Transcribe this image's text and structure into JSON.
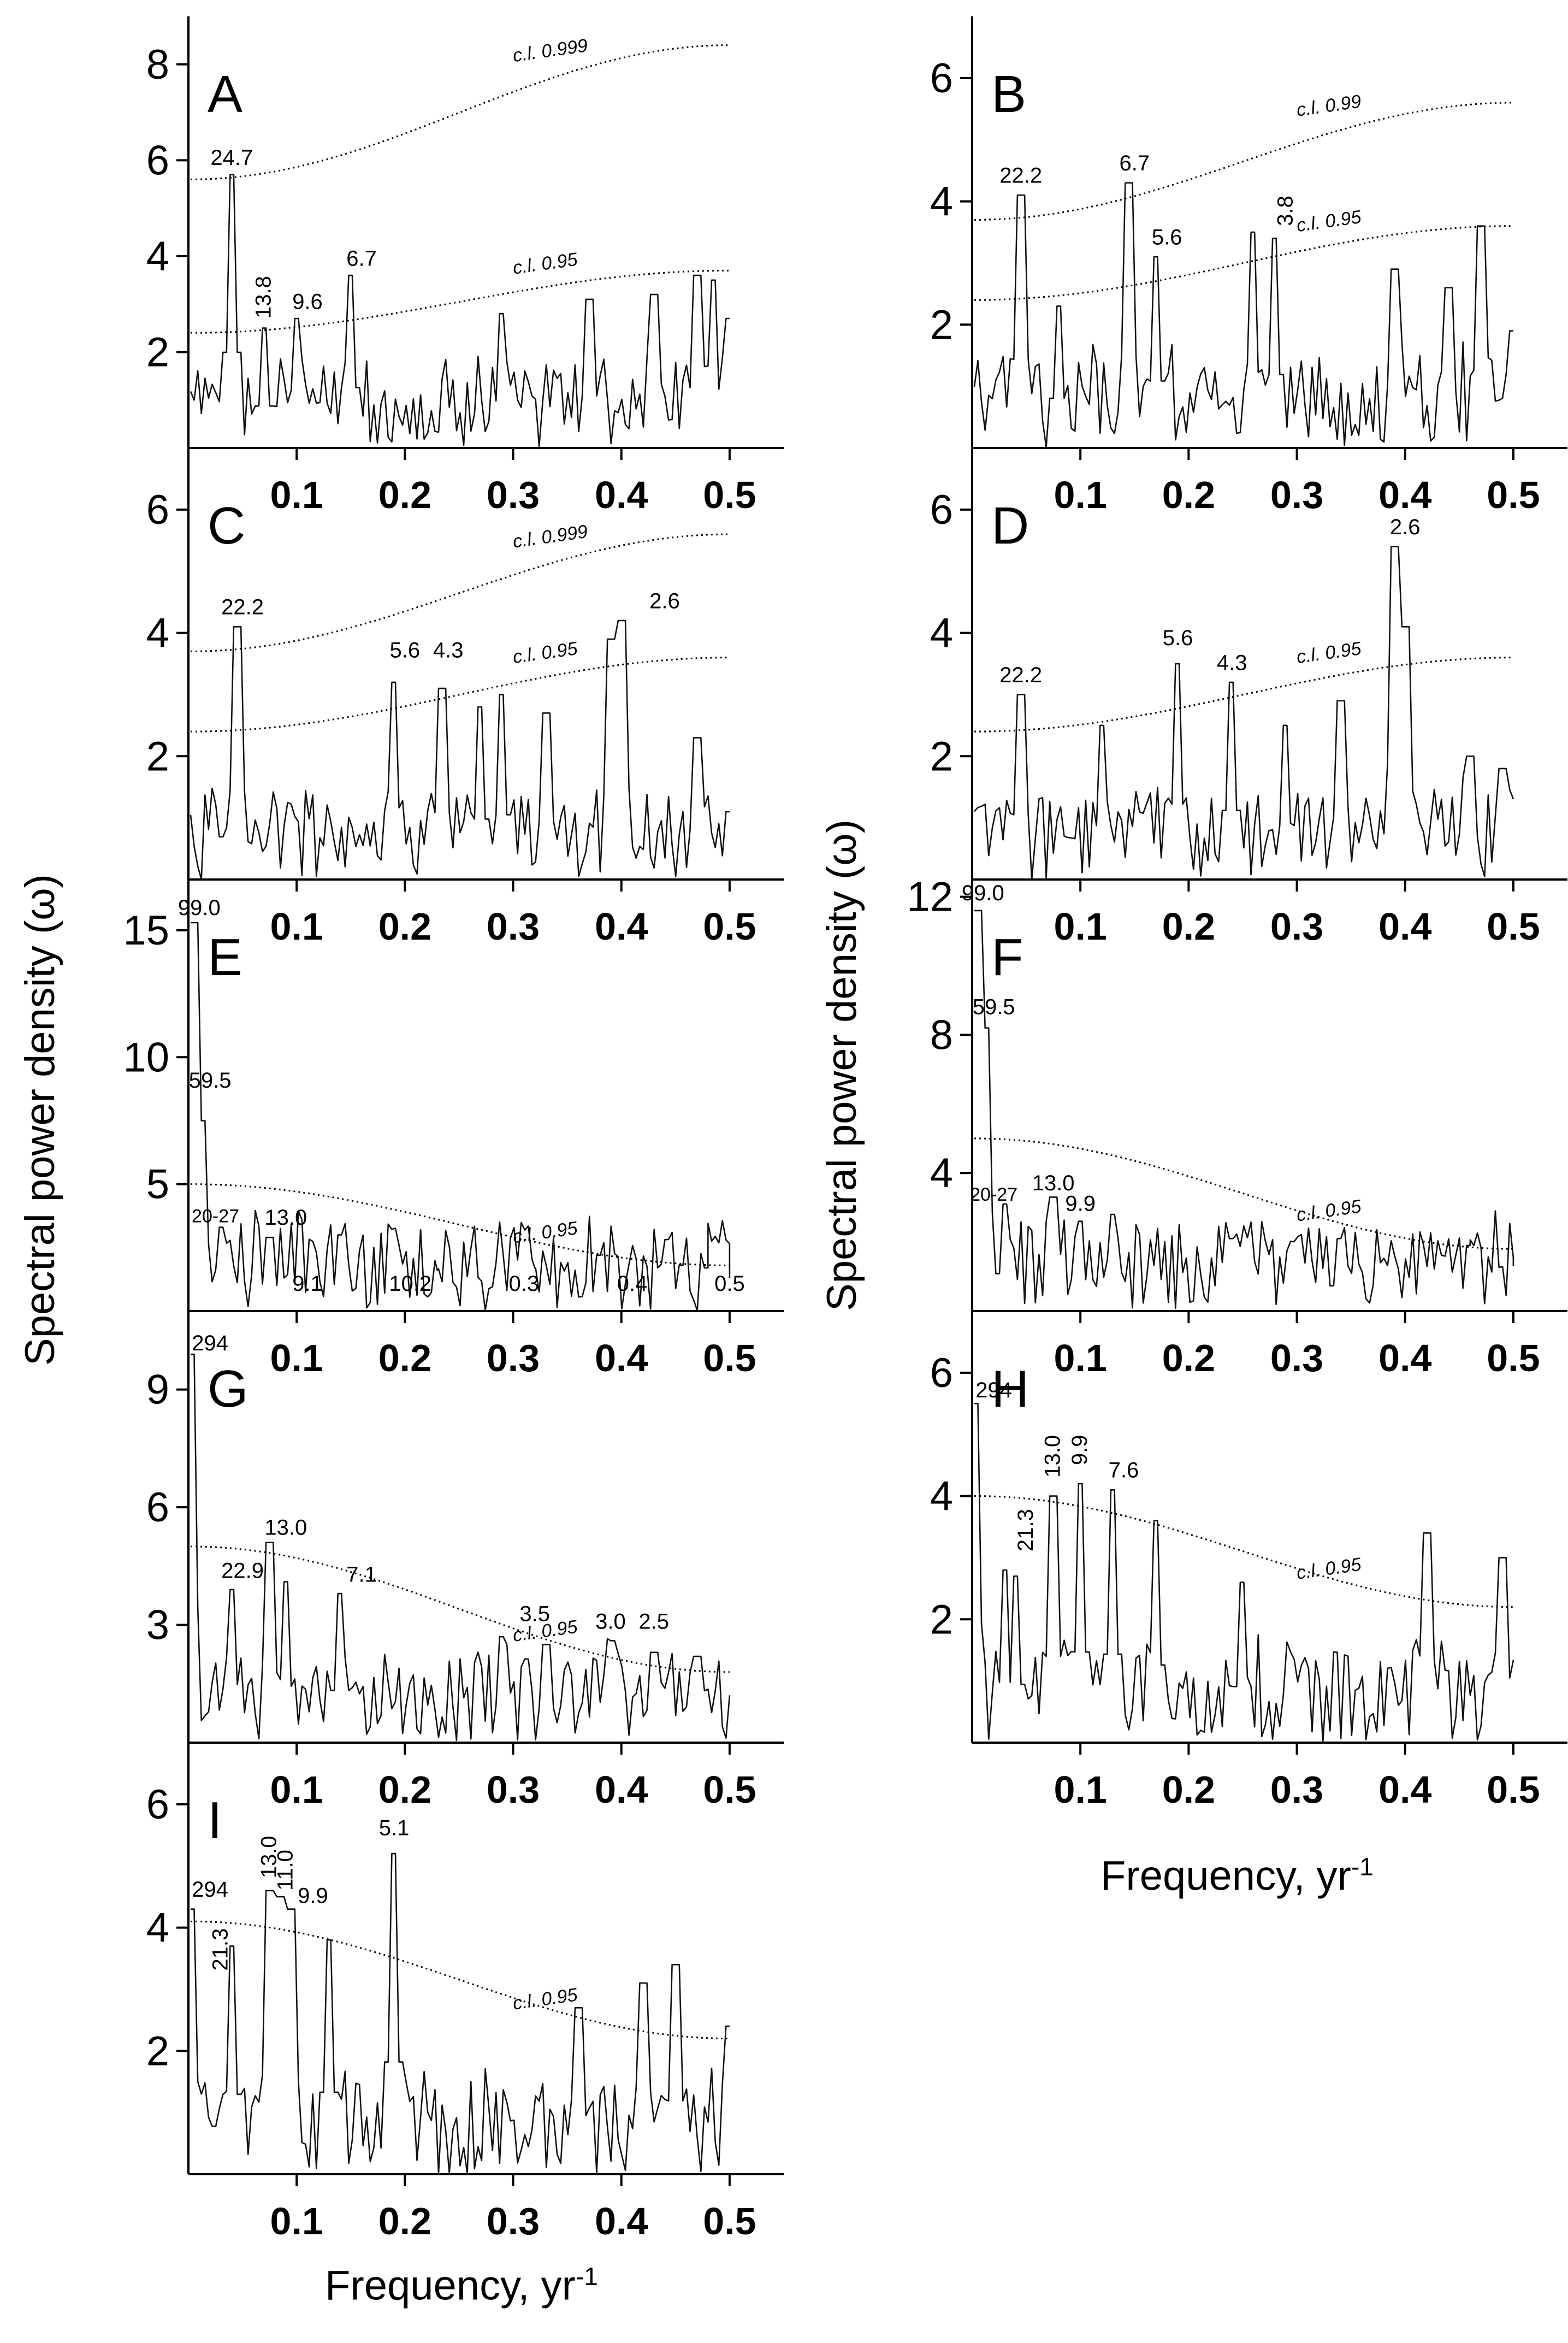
{
  "figure": {
    "ylabel_left": "Spectral power density (ω)",
    "ylabel_right": "Spectral power density (ω)",
    "xlabel_right_text": "Frequency, yr",
    "xlabel_right_exp": "-1",
    "xlabel_bottom_text": "Frequency, yr",
    "xlabel_bottom_exp": "-1"
  },
  "chart_data": [
    {
      "panel": "A",
      "type": "line",
      "title": "A",
      "xlabel": "",
      "ylabel": "",
      "xlim": [
        0,
        0.55
      ],
      "ylim": [
        0,
        9
      ],
      "xticks": [
        0.1,
        0.2,
        0.3,
        0.4,
        0.5
      ],
      "yticks": [
        2,
        4,
        6,
        8
      ],
      "xtick_labels": [
        "0.1",
        "0.2",
        "0.3",
        "0.4",
        "0.5"
      ],
      "ytick_labels": [
        "2",
        "4",
        "6",
        "8"
      ],
      "peaks": [
        [
          0.04,
          5.7
        ],
        [
          0.07,
          2.5
        ],
        [
          0.1,
          2.7
        ],
        [
          0.15,
          3.6
        ],
        [
          0.29,
          2.8
        ],
        [
          0.37,
          3.1
        ],
        [
          0.43,
          3.2
        ],
        [
          0.47,
          3.6
        ],
        [
          0.485,
          3.5
        ],
        [
          0.5,
          2.7
        ]
      ],
      "confidence_levels": [
        {
          "label": "c.l. 0.999",
          "start": 5.6,
          "end": 8.4
        },
        {
          "label": "c.l. 0.95",
          "start": 2.4,
          "end": 3.7
        }
      ],
      "annotations": [
        {
          "text": "24.7",
          "x": 0.04,
          "y": 5.9
        },
        {
          "text": "13.8",
          "x": 0.07,
          "y": 2.7,
          "rotated": true
        },
        {
          "text": "9.6",
          "x": 0.11,
          "y": 2.9
        },
        {
          "text": "6.7",
          "x": 0.16,
          "y": 3.8
        }
      ]
    },
    {
      "panel": "B",
      "type": "line",
      "title": "B",
      "xlabel": "",
      "ylabel": "",
      "xlim": [
        0,
        0.55
      ],
      "ylim": [
        0,
        7
      ],
      "xticks": [
        0.1,
        0.2,
        0.3,
        0.4,
        0.5
      ],
      "yticks": [
        2,
        4,
        6
      ],
      "xtick_labels": [
        "0.1",
        "0.2",
        "0.3",
        "0.4",
        "0.5"
      ],
      "ytick_labels": [
        "2",
        "4",
        "6"
      ],
      "peaks": [
        [
          0.045,
          4.1
        ],
        [
          0.08,
          2.3
        ],
        [
          0.145,
          4.3
        ],
        [
          0.17,
          3.1
        ],
        [
          0.26,
          3.5
        ],
        [
          0.28,
          3.4
        ],
        [
          0.39,
          2.9
        ],
        [
          0.44,
          2.6
        ],
        [
          0.47,
          3.6
        ],
        [
          0.5,
          1.9
        ]
      ],
      "confidence_levels": [
        {
          "label": "c.l. 0.99",
          "start": 3.7,
          "end": 5.6
        },
        {
          "label": "c.l. 0.95",
          "start": 2.4,
          "end": 3.6
        }
      ],
      "annotations": [
        {
          "text": "22.2",
          "x": 0.045,
          "y": 4.3
        },
        {
          "text": "6.7",
          "x": 0.15,
          "y": 4.5
        },
        {
          "text": "5.6",
          "x": 0.18,
          "y": 3.3
        },
        {
          "text": "3.8",
          "x": 0.29,
          "y": 3.6,
          "rotated": true
        }
      ]
    },
    {
      "panel": "C",
      "type": "line",
      "title": "C",
      "xlabel": "",
      "ylabel": "",
      "xlim": [
        0,
        0.55
      ],
      "ylim": [
        0,
        7
      ],
      "xticks": [
        0.1,
        0.2,
        0.3,
        0.4,
        0.5
      ],
      "yticks": [
        2,
        4,
        6
      ],
      "xtick_labels": [
        "0.1",
        "0.2",
        "0.3",
        "0.4",
        "0.5"
      ],
      "ytick_labels": [
        "2",
        "4",
        "6"
      ],
      "peaks": [
        [
          0.045,
          4.1
        ],
        [
          0.19,
          3.2
        ],
        [
          0.235,
          3.1
        ],
        [
          0.27,
          2.8
        ],
        [
          0.29,
          3.0
        ],
        [
          0.33,
          2.7
        ],
        [
          0.39,
          3.9
        ],
        [
          0.4,
          4.2
        ],
        [
          0.47,
          2.3
        ],
        [
          0.5,
          1.1
        ]
      ],
      "confidence_levels": [
        {
          "label": "c.l. 0.999",
          "start": 3.7,
          "end": 5.6
        },
        {
          "label": "c.l. 0.95",
          "start": 2.4,
          "end": 3.6
        }
      ],
      "annotations": [
        {
          "text": "22.2",
          "x": 0.05,
          "y": 4.3
        },
        {
          "text": "5.6",
          "x": 0.2,
          "y": 3.6
        },
        {
          "text": "4.3",
          "x": 0.24,
          "y": 3.6
        },
        {
          "text": "2.6",
          "x": 0.44,
          "y": 4.4
        }
      ]
    },
    {
      "panel": "D",
      "type": "line",
      "title": "D",
      "xlabel": "",
      "ylabel": "",
      "xlim": [
        0,
        0.55
      ],
      "ylim": [
        0,
        7
      ],
      "xticks": [
        0.1,
        0.2,
        0.3,
        0.4,
        0.5
      ],
      "yticks": [
        2,
        4,
        6
      ],
      "xtick_labels": [
        "0.1",
        "0.2",
        "0.3",
        "0.4",
        "0.5"
      ],
      "ytick_labels": [
        "2",
        "4",
        "6"
      ],
      "peaks": [
        [
          0.045,
          3.0
        ],
        [
          0.12,
          2.5
        ],
        [
          0.19,
          3.5
        ],
        [
          0.24,
          3.2
        ],
        [
          0.29,
          2.5
        ],
        [
          0.34,
          2.9
        ],
        [
          0.39,
          5.4
        ],
        [
          0.4,
          4.1
        ],
        [
          0.46,
          2.0
        ],
        [
          0.49,
          1.8
        ]
      ],
      "confidence_levels": [
        {
          "label": "c.l. 0.95",
          "start": 2.4,
          "end": 3.6
        }
      ],
      "annotations": [
        {
          "text": "22.2",
          "x": 0.045,
          "y": 3.2
        },
        {
          "text": "5.6",
          "x": 0.19,
          "y": 3.8
        },
        {
          "text": "4.3",
          "x": 0.24,
          "y": 3.4
        },
        {
          "text": "2.6",
          "x": 0.4,
          "y": 5.6
        }
      ]
    },
    {
      "panel": "E",
      "type": "line",
      "title": "E",
      "xlabel": "",
      "ylabel": "",
      "xlim": [
        0,
        0.55
      ],
      "ylim": [
        0,
        17
      ],
      "xticks": [
        0.1,
        0.2,
        0.3,
        0.4,
        0.5
      ],
      "yticks": [
        5,
        10,
        15
      ],
      "xtick_labels": [
        "0.1",
        "0.2",
        "0.3",
        "0.4",
        "0.5"
      ],
      "ytick_labels": [
        "5",
        "10",
        "15"
      ],
      "peaks": [
        [
          0.005,
          15.3
        ],
        [
          0.012,
          7.5
        ],
        [
          0.03,
          3.3
        ],
        [
          0.075,
          2.9
        ],
        [
          0.14,
          3.0
        ],
        [
          0.23,
          1.6
        ],
        [
          0.32,
          1.7
        ],
        [
          0.38,
          2.2
        ],
        [
          0.48,
          1.7
        ],
        [
          0.5,
          1.3
        ]
      ],
      "confidence_levels": [
        {
          "label": "c.l. 0.95",
          "start": 5.0,
          "end": 1.8
        }
      ],
      "annotations": [
        {
          "text": "99.0",
          "x": 0.01,
          "y": 15.6
        },
        {
          "text": "59.5",
          "x": 0.02,
          "y": 8.8
        },
        {
          "text": "20-27",
          "x": 0.025,
          "y": 3.5
        },
        {
          "text": "13.0",
          "x": 0.09,
          "y": 3.4
        },
        {
          "text": "9.1",
          "x": 0.11,
          "y": 0.8
        },
        {
          "text": "10.2",
          "x": 0.205,
          "y": 0.8
        },
        {
          "text": "0.3",
          "x": 0.31,
          "y": 0.8
        },
        {
          "text": "0.4",
          "x": 0.41,
          "y": 0.8
        },
        {
          "text": "0.5",
          "x": 0.5,
          "y": 0.8
        }
      ]
    },
    {
      "panel": "F",
      "type": "line",
      "title": "F",
      "xlabel": "",
      "ylabel": "",
      "xlim": [
        0,
        0.55
      ],
      "ylim": [
        0,
        12.5
      ],
      "xticks": [
        0.1,
        0.2,
        0.3,
        0.4,
        0.5
      ],
      "yticks": [
        4,
        8,
        12
      ],
      "xtick_labels": [
        "0.1",
        "0.2",
        "0.3",
        "0.4",
        "0.5"
      ],
      "ytick_labels": [
        "4",
        "8",
        "12"
      ],
      "peaks": [
        [
          0.005,
          11.6
        ],
        [
          0.012,
          8.2
        ],
        [
          0.03,
          3.1
        ],
        [
          0.075,
          3.3
        ],
        [
          0.1,
          2.6
        ],
        [
          0.13,
          2.8
        ],
        [
          0.24,
          2.1
        ],
        [
          0.34,
          2.1
        ],
        [
          0.46,
          1.9
        ],
        [
          0.5,
          1.3
        ]
      ],
      "confidence_levels": [
        {
          "label": "c.l. 0.95",
          "start": 5.0,
          "end": 1.8
        }
      ],
      "annotations": [
        {
          "text": "99.0",
          "x": 0.01,
          "y": 11.9
        },
        {
          "text": "59.5",
          "x": 0.02,
          "y": 8.6
        },
        {
          "text": "20-27",
          "x": 0.02,
          "y": 3.2
        },
        {
          "text": "13.0",
          "x": 0.075,
          "y": 3.5
        },
        {
          "text": "9.9",
          "x": 0.1,
          "y": 2.9
        }
      ]
    },
    {
      "panel": "G",
      "type": "line",
      "title": "G",
      "xlabel": "",
      "ylabel": "",
      "xlim": [
        0,
        0.55
      ],
      "ylim": [
        0,
        11
      ],
      "xticks": [
        0.1,
        0.2,
        0.3,
        0.4,
        0.5
      ],
      "yticks": [
        3,
        6,
        9
      ],
      "xtick_labels": [
        "0.1",
        "0.2",
        "0.3",
        "0.4",
        "0.5"
      ],
      "ytick_labels": [
        "3",
        "6",
        "9"
      ],
      "peaks": [
        [
          0.002,
          9.9
        ],
        [
          0.04,
          3.9
        ],
        [
          0.075,
          5.1
        ],
        [
          0.09,
          4.1
        ],
        [
          0.14,
          3.8
        ],
        [
          0.29,
          2.7
        ],
        [
          0.33,
          2.5
        ],
        [
          0.39,
          2.6
        ],
        [
          0.43,
          2.3
        ],
        [
          0.47,
          2.2
        ]
      ],
      "confidence_levels": [
        {
          "label": "c.l. 0.95",
          "start": 5.0,
          "end": 1.8
        }
      ],
      "annotations": [
        {
          "text": "294",
          "x": 0.02,
          "y": 10.0
        },
        {
          "text": "22.9",
          "x": 0.05,
          "y": 4.2
        },
        {
          "text": "13.0",
          "x": 0.09,
          "y": 5.3
        },
        {
          "text": "7.1",
          "x": 0.16,
          "y": 4.1
        },
        {
          "text": "3.5",
          "x": 0.32,
          "y": 3.1
        },
        {
          "text": "3.0",
          "x": 0.39,
          "y": 2.9
        },
        {
          "text": "2.5",
          "x": 0.43,
          "y": 2.9
        }
      ]
    },
    {
      "panel": "H",
      "type": "line",
      "title": "H",
      "xlabel": "",
      "ylabel": "",
      "xlim": [
        0,
        0.55
      ],
      "ylim": [
        0,
        7
      ],
      "xticks": [
        0.1,
        0.2,
        0.3,
        0.4,
        0.5
      ],
      "yticks": [
        2,
        4,
        6
      ],
      "xtick_labels": [
        "0.1",
        "0.2",
        "0.3",
        "0.4",
        "0.5"
      ],
      "ytick_labels": [
        "2",
        "4",
        "6"
      ],
      "peaks": [
        [
          0.002,
          5.5
        ],
        [
          0.03,
          2.8
        ],
        [
          0.04,
          2.7
        ],
        [
          0.075,
          4.0
        ],
        [
          0.1,
          4.2
        ],
        [
          0.13,
          4.1
        ],
        [
          0.17,
          3.6
        ],
        [
          0.25,
          2.6
        ],
        [
          0.42,
          3.4
        ],
        [
          0.49,
          3.0
        ]
      ],
      "confidence_levels": [
        {
          "label": "c.l. 0.95",
          "start": 4.0,
          "end": 2.2
        }
      ],
      "annotations": [
        {
          "text": "294",
          "x": 0.02,
          "y": 5.6
        },
        {
          "text": "21.3",
          "x": 0.05,
          "y": 3.1,
          "rotated": true
        },
        {
          "text": "13.0",
          "x": 0.075,
          "y": 4.3,
          "rotated": true
        },
        {
          "text": "9.9",
          "x": 0.1,
          "y": 4.5,
          "rotated": true
        },
        {
          "text": "7.6",
          "x": 0.14,
          "y": 4.3
        }
      ]
    },
    {
      "panel": "I",
      "type": "line",
      "title": "I",
      "xlabel": "",
      "ylabel": "",
      "xlim": [
        0,
        0.55
      ],
      "ylim": [
        0,
        7
      ],
      "xticks": [
        0.1,
        0.2,
        0.3,
        0.4,
        0.5
      ],
      "yticks": [
        2,
        4,
        6
      ],
      "xtick_labels": [
        "0.1",
        "0.2",
        "0.3",
        "0.4",
        "0.5"
      ],
      "ytick_labels": [
        "2",
        "4",
        "6"
      ],
      "peaks": [
        [
          0.002,
          4.3
        ],
        [
          0.04,
          3.7
        ],
        [
          0.075,
          4.6
        ],
        [
          0.085,
          4.5
        ],
        [
          0.095,
          4.3
        ],
        [
          0.13,
          3.8
        ],
        [
          0.19,
          5.2
        ],
        [
          0.36,
          2.7
        ],
        [
          0.42,
          3.1
        ],
        [
          0.45,
          3.4
        ],
        [
          0.5,
          2.4
        ]
      ],
      "confidence_levels": [
        {
          "label": "c.l. 0.95",
          "start": 4.1,
          "end": 2.2
        }
      ],
      "annotations": [
        {
          "text": "294",
          "x": 0.02,
          "y": 4.5
        },
        {
          "text": "21.3",
          "x": 0.03,
          "y": 3.3,
          "rotated": true
        },
        {
          "text": "13.0",
          "x": 0.075,
          "y": 4.8,
          "rotated": true
        },
        {
          "text": "11.0",
          "x": 0.09,
          "y": 4.6,
          "rotated": true
        },
        {
          "text": "9.9",
          "x": 0.115,
          "y": 4.4
        },
        {
          "text": "5.1",
          "x": 0.19,
          "y": 5.5
        }
      ]
    }
  ]
}
